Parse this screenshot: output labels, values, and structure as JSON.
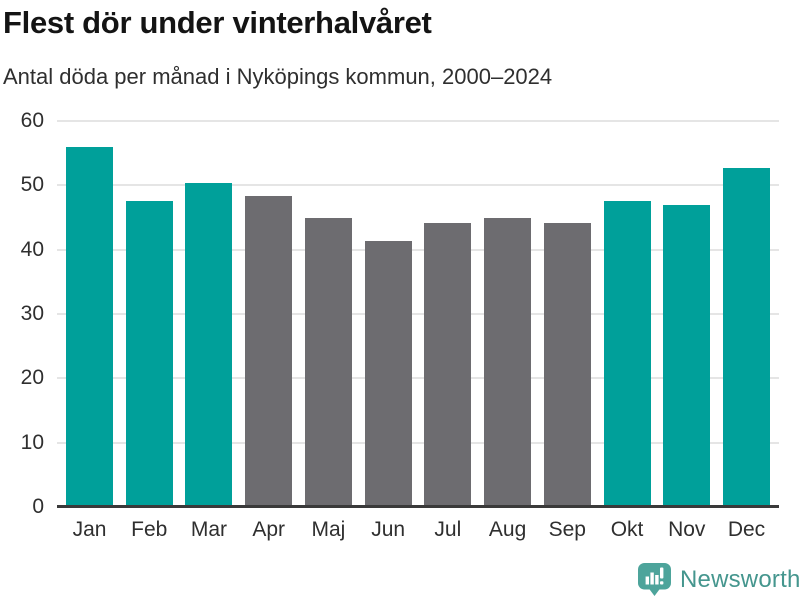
{
  "chart_data": {
    "type": "bar",
    "title": "Flest dör under vinterhalvåret",
    "subtitle": "Antal döda per månad i Nyköpings kommun, 2000–2024",
    "categories": [
      "Jan",
      "Feb",
      "Mar",
      "Apr",
      "Maj",
      "Jun",
      "Jul",
      "Aug",
      "Sep",
      "Okt",
      "Nov",
      "Dec"
    ],
    "values": [
      56.0,
      47.6,
      50.4,
      48.4,
      44.9,
      41.4,
      44.2,
      44.9,
      44.2,
      47.6,
      46.9,
      52.7
    ],
    "bar_colors": [
      "#00A09A",
      "#00A09A",
      "#00A09A",
      "#6D6C70",
      "#6D6C70",
      "#6D6C70",
      "#6D6C70",
      "#6D6C70",
      "#6D6C70",
      "#00A09A",
      "#00A09A",
      "#00A09A"
    ],
    "xlabel": "",
    "ylabel": "",
    "ylim": [
      0,
      60
    ],
    "yticks": [
      0,
      10,
      20,
      30,
      40,
      50,
      60
    ],
    "grid": "horizontal",
    "legend": "none"
  },
  "branding": {
    "logo_text": "Newsworthy",
    "logo_icon": "bar-chart-speech-bubble",
    "icon_color": "#4DA49B",
    "text_color": "#45968E"
  },
  "style": {
    "title_color": "#141414",
    "label_color": "#2F2F2F",
    "gridline_color": "#E5E5E5",
    "axis_line_color": "#3A3A3A"
  }
}
